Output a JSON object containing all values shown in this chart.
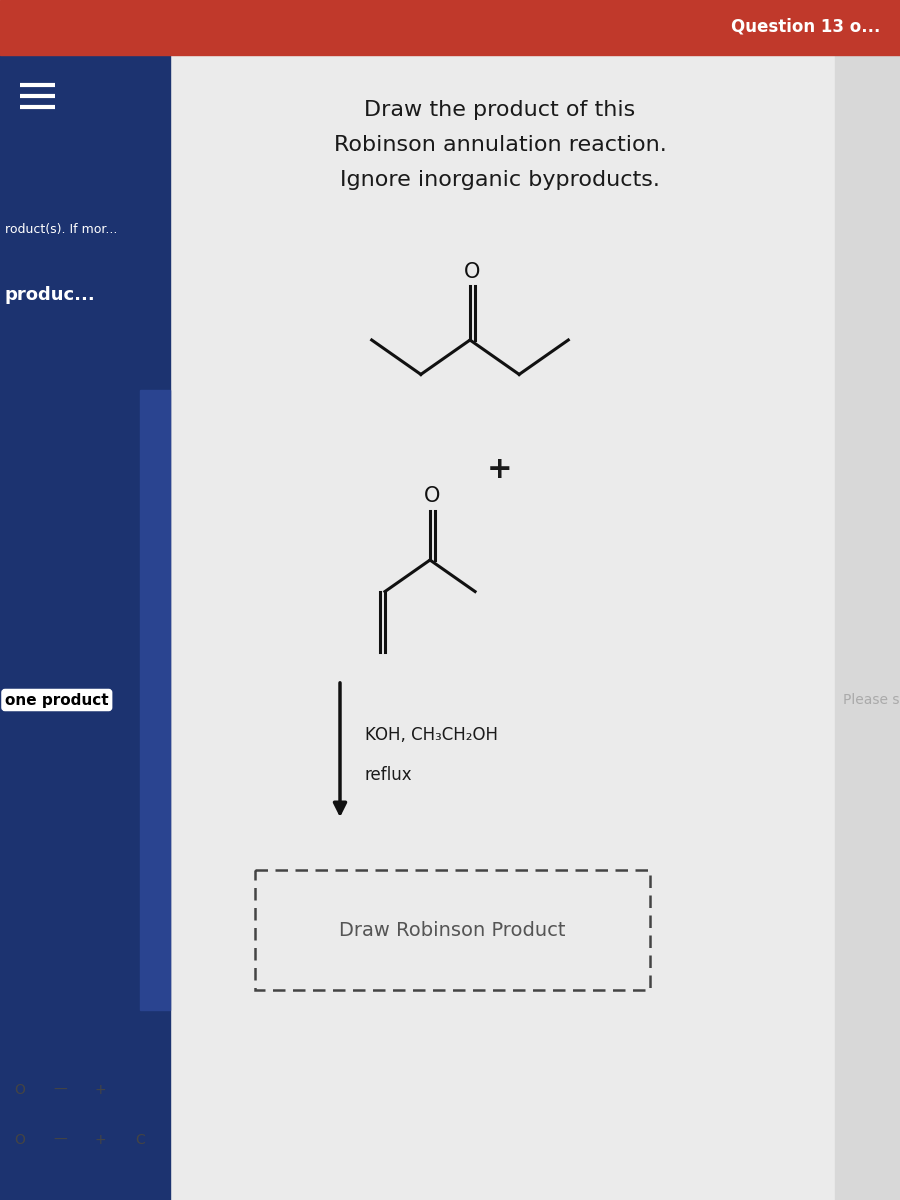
{
  "title_line1": "Draw the product of this",
  "title_line2": "Robinson annulation reaction.",
  "title_line3": "Ignore inorganic byproducts.",
  "bg_main": "#ebebeb",
  "bg_sidebar": "#1c3370",
  "bg_sidebar_light": "#e8e8e8",
  "header_color": "#c0392b",
  "text_color": "#1a1a1a",
  "mol_color": "#111111",
  "reagent_line1": "KOH, CH₃CH₂OH",
  "reagent_line2": "reflux",
  "box_text": "Draw Robinson Product",
  "sidebar_text1": "roduct(s). If mor...",
  "sidebar_text2": "produc...",
  "sidebar_text3": "one product",
  "please_sele": "Please sele",
  "fig_width": 9.0,
  "fig_height": 12.0,
  "dpi": 100
}
